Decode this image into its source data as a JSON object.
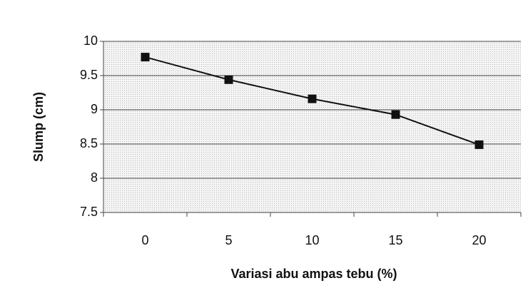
{
  "chart_data": {
    "type": "line",
    "categories": [
      0,
      5,
      10,
      15,
      20
    ],
    "series": [
      {
        "name": "Slump",
        "color": "#111111",
        "values": [
          9.77,
          9.44,
          9.16,
          8.93,
          8.49
        ]
      }
    ],
    "ylim": [
      7.5,
      10
    ],
    "yticks": [
      7.5,
      8,
      8.5,
      9,
      9.5,
      10
    ],
    "grid": true,
    "xlabel": "Variasi abu ampas tebu (%)",
    "ylabel": "Slump (cm)"
  }
}
